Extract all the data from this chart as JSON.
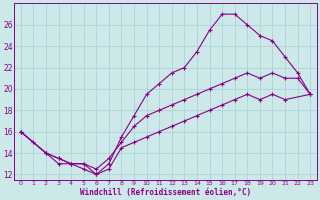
{
  "xlabel": "Windchill (Refroidissement éolien,°C)",
  "bg_color": "#cce8e8",
  "line_color": "#880088",
  "grid_color": "#aad4d4",
  "xlim": [
    -0.5,
    23.5
  ],
  "ylim": [
    11.5,
    28.0
  ],
  "yticks": [
    12,
    14,
    16,
    18,
    20,
    22,
    24,
    26
  ],
  "xticks": [
    0,
    1,
    2,
    3,
    4,
    5,
    6,
    7,
    8,
    9,
    10,
    11,
    12,
    13,
    14,
    15,
    16,
    17,
    18,
    19,
    20,
    21,
    22,
    23
  ],
  "line1_x": [
    0,
    1,
    2,
    3,
    4,
    5,
    6,
    7,
    8,
    9,
    10,
    11,
    12,
    13,
    14,
    15,
    16,
    17,
    18,
    19,
    20,
    21,
    22,
    23
  ],
  "line1_y": [
    16.0,
    15.0,
    14.0,
    13.0,
    13.0,
    12.5,
    12.0,
    13.0,
    15.5,
    17.5,
    19.5,
    20.5,
    21.5,
    22.0,
    23.5,
    25.5,
    27.0,
    27.0,
    26.0,
    25.0,
    24.5,
    23.0,
    21.5,
    19.5
  ],
  "line2_x": [
    0,
    2,
    3,
    4,
    5,
    6,
    7,
    8,
    9,
    10,
    11,
    12,
    13,
    14,
    15,
    16,
    17,
    18,
    19,
    20,
    21,
    22,
    23
  ],
  "line2_y": [
    16.0,
    14.0,
    13.5,
    13.0,
    13.0,
    12.5,
    13.5,
    15.0,
    16.5,
    17.5,
    18.0,
    18.5,
    19.0,
    19.5,
    20.0,
    20.5,
    21.0,
    21.5,
    21.0,
    21.5,
    21.0,
    21.0,
    19.5
  ],
  "line3_x": [
    0,
    2,
    3,
    4,
    5,
    6,
    7,
    8,
    9,
    10,
    11,
    12,
    13,
    14,
    15,
    16,
    17,
    18,
    19,
    20,
    21,
    23
  ],
  "line3_y": [
    16.0,
    14.0,
    13.5,
    13.0,
    13.0,
    12.0,
    12.5,
    14.5,
    15.0,
    15.5,
    16.0,
    16.5,
    17.0,
    17.5,
    18.0,
    18.5,
    19.0,
    19.5,
    19.0,
    19.5,
    19.0,
    19.5
  ]
}
